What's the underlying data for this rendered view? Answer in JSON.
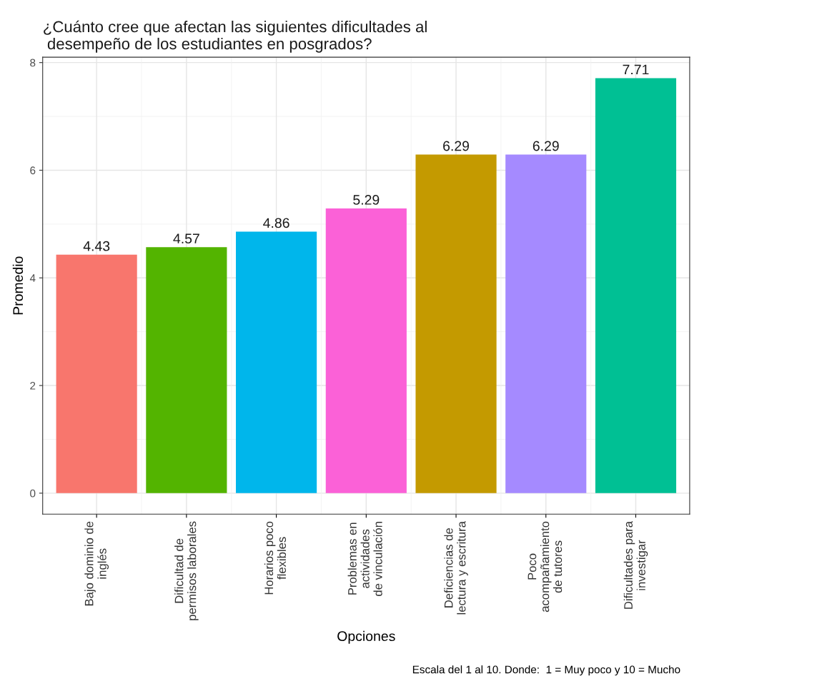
{
  "chart_data": {
    "type": "bar",
    "title": "¿Cuánto cree que afectan las siguientes dificultades al\n desempeño de los estudiantes en posgrados?",
    "xlabel": "Opciones",
    "ylabel": "Promedio",
    "categories": [
      "Bajo dominio de\ninglés",
      "Dificultad de\npermisos laborales",
      "Horarios poco\nflexibles",
      "Problemas en\nactividades\nde vinculación",
      "Deficiencias de\nlectura y escritura",
      "Poco\nacompañamiento\nde tutores",
      "Dificultades para\ninvestigar"
    ],
    "values": [
      4.43,
      4.57,
      4.86,
      5.29,
      6.29,
      6.29,
      7.71
    ],
    "colors": [
      "#F8766D",
      "#53B400",
      "#00B6EB",
      "#FB61D7",
      "#C49A00",
      "#A58AFF",
      "#00C094"
    ],
    "data_labels": true,
    "ylim": [
      -0.39,
      8.1
    ],
    "yticks": [
      0,
      2,
      4,
      6,
      8
    ],
    "grid": true,
    "legend": false,
    "annotations": [
      "Escala del 1 al 10. Donde:  1 = Muy poco y 10 = Mucho"
    ]
  }
}
